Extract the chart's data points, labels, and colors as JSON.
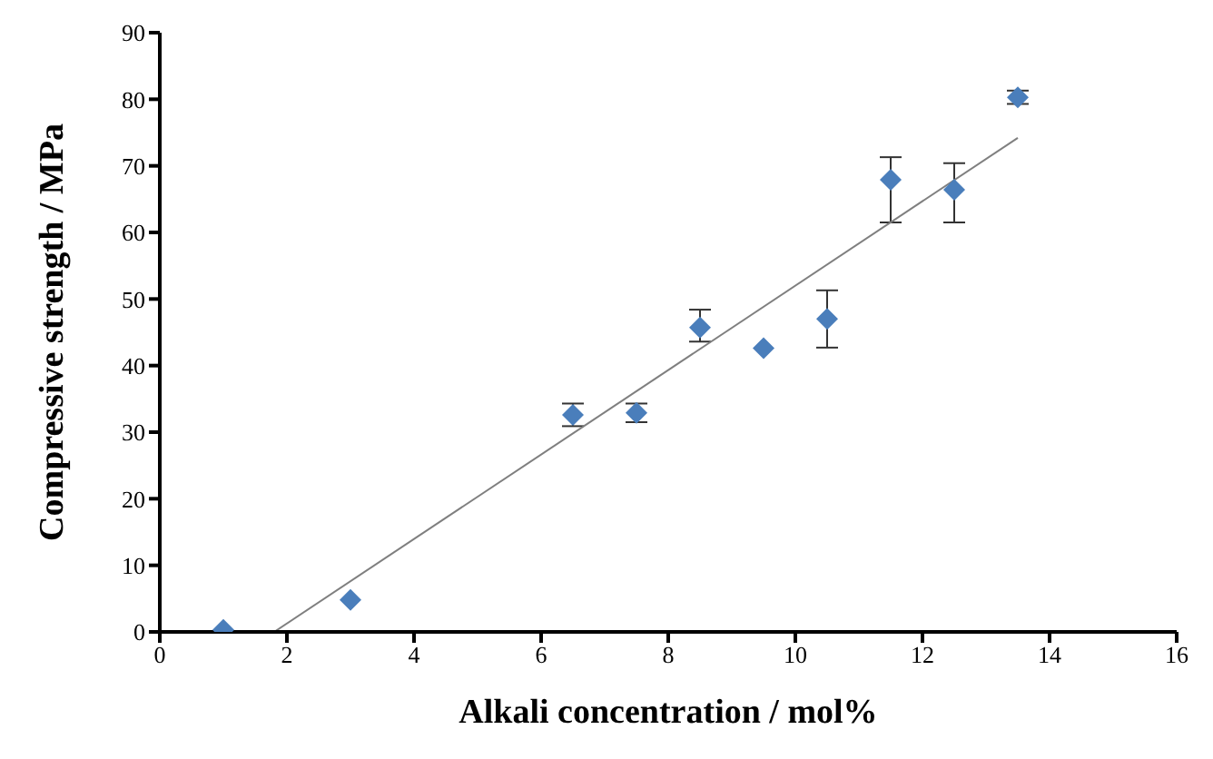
{
  "chart_data": {
    "type": "scatter",
    "xlabel": "Alkali concentration / mol%",
    "ylabel": "Compressive strength / MPa",
    "xlim": [
      0,
      16
    ],
    "xticks": [
      0,
      2,
      4,
      6,
      8,
      10,
      12,
      14,
      16
    ],
    "ylim": [
      0,
      90
    ],
    "yticks": [
      0,
      10,
      20,
      30,
      40,
      50,
      60,
      70,
      80,
      90
    ],
    "grid": false,
    "series": [
      {
        "type": "scatter",
        "color": "#4a7ebb",
        "marker": "diamond",
        "x": [
          1,
          3,
          6.5,
          7.5,
          8.5,
          9.5,
          10.5,
          11.5,
          12.5,
          13.5
        ],
        "values": [
          0.3,
          4.8,
          32.6,
          32.9,
          45.7,
          42.6,
          47,
          67.9,
          66.4,
          80.3
        ],
        "errors": [
          null,
          null,
          1.7,
          1.4,
          [
            43.6,
            48.4
          ],
          null,
          4.3,
          [
            61.5,
            71.3
          ],
          [
            61.5,
            70.4
          ],
          1
        ]
      },
      {
        "type": "line",
        "color": "#7f7f7f",
        "marker": "none",
        "line_style": "solid",
        "x": [
          1.8,
          13.5
        ],
        "values": [
          0,
          74.2
        ]
      }
    ]
  }
}
